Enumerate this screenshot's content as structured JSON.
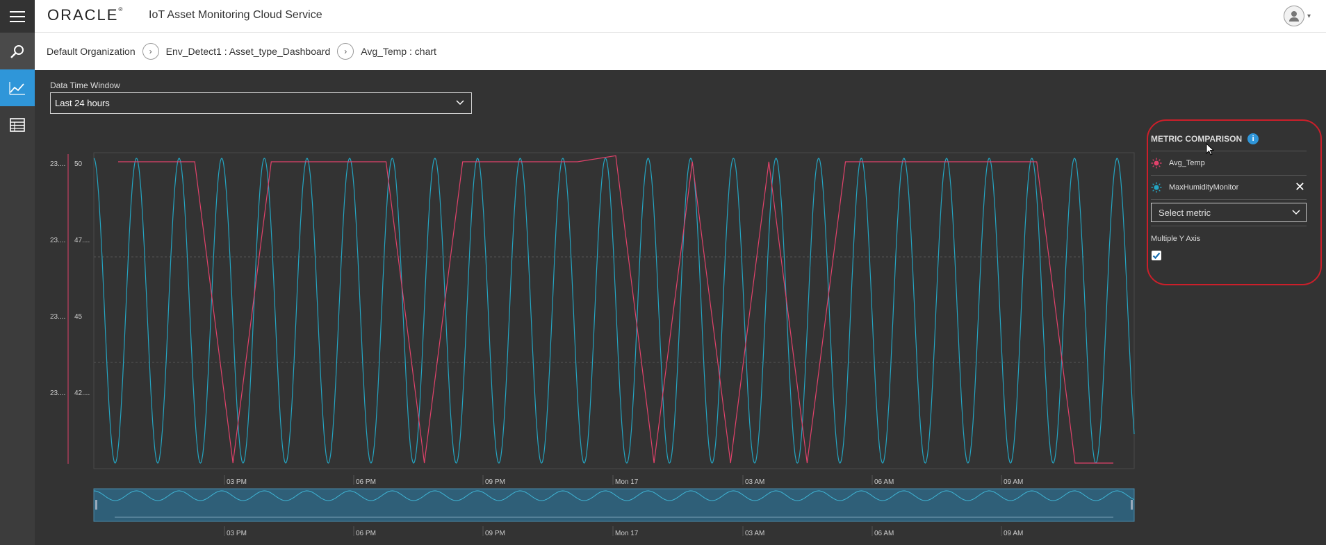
{
  "header": {
    "logo_text": "ORACLE",
    "app_title": "IoT Asset Monitoring Cloud Service"
  },
  "nav": {
    "items": [
      {
        "name": "search-icon"
      },
      {
        "name": "analytics-chart-icon"
      },
      {
        "name": "table-grid-icon"
      }
    ]
  },
  "breadcrumb": {
    "items": [
      "Default Organization",
      "Env_Detect1 : Asset_type_Dashboard",
      "Avg_Temp : chart"
    ]
  },
  "controls": {
    "data_time_window_label": "Data Time Window",
    "data_time_window_value": "Last 24 hours"
  },
  "metric_comparison": {
    "title": "METRIC COMPARISON",
    "metrics": [
      {
        "name": "Avg_Temp",
        "color": "#e2426b",
        "removable": false
      },
      {
        "name": "MaxHumidityMonitor",
        "color": "#24a5c2",
        "removable": true
      }
    ],
    "select_placeholder": "Select metric",
    "multiple_y_axis_label": "Multiple Y Axis",
    "multiple_y_axis_checked": true
  },
  "colors": {
    "accent": "#2f96d9",
    "highlight_ring": "#cc1f2a",
    "series_temp": "#e2426b",
    "series_humidity": "#24a5c2"
  },
  "chart_data": {
    "type": "line",
    "x_tick_labels": [
      "03 PM",
      "06 PM",
      "09 PM",
      "Mon 17",
      "03 AM",
      "06 AM",
      "09 AM"
    ],
    "left_axis_a_labels": [
      "23....",
      "23....",
      "23....",
      "23...."
    ],
    "left_axis_b_labels": [
      "50",
      "47....",
      "45",
      "42...."
    ],
    "series": [
      {
        "name": "Avg_Temp",
        "color": "#e2426b",
        "levels": [
          1,
          1,
          1,
          0,
          1,
          1,
          1,
          1,
          0,
          1,
          1,
          1,
          1,
          1.02,
          0,
          1,
          0,
          1,
          0,
          1,
          1,
          1,
          1,
          1,
          1,
          0,
          0
        ],
        "comment": "normalized level 0..1 per segment (1 = top of axis, 0 = bottom)"
      },
      {
        "name": "MaxHumidityMonitor",
        "color": "#24a5c2",
        "cycles": 24.4
      }
    ],
    "overview": {
      "x_tick_labels": [
        "03 PM",
        "06 PM",
        "09 PM",
        "Mon 17",
        "03 AM",
        "06 AM",
        "09 AM"
      ]
    }
  }
}
